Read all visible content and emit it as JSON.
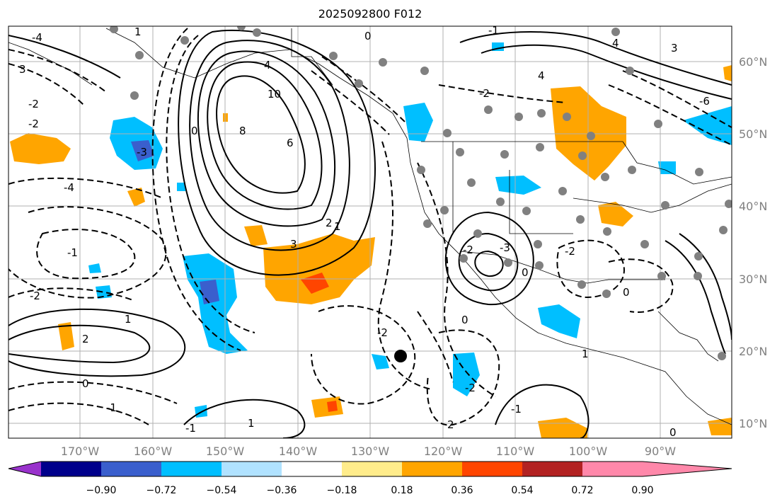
{
  "title": "2025092800 F012",
  "map": {
    "lon_labels": [
      "170°W",
      "160°W",
      "150°W",
      "140°W",
      "130°W",
      "120°W",
      "110°W",
      "100°W",
      "90°W"
    ],
    "lat_labels": [
      "60°N",
      "50°N",
      "40°N",
      "30°N",
      "20°N",
      "10°N"
    ],
    "contour_labels": [
      "-4",
      "3",
      "-2",
      "-2",
      "-3",
      "-4",
      "-1",
      "-2",
      "2",
      "1",
      "0",
      "-1",
      "1",
      "10",
      "8",
      "6",
      "4",
      "3",
      "2",
      "1",
      "0",
      "-2",
      "0",
      "-3",
      "0",
      "-2",
      "0",
      "-2",
      "1",
      "-1",
      "2",
      "4",
      "3",
      "4",
      "-1",
      "-2",
      "1",
      "-2",
      "0",
      "-1",
      "0",
      "-6"
    ],
    "marker": "filled-circle-black"
  },
  "colorbar": {
    "colors": [
      "#9932CC",
      "#00008B",
      "#3A5FCD",
      "#00BFFF",
      "#B0E2FF",
      "#FFFFFF",
      "#FFEC8B",
      "#FFA500",
      "#FF4500",
      "#B22222",
      "#FF88AA"
    ],
    "tick_labels": [
      "−0.90",
      "−0.72",
      "−0.54",
      "−0.36",
      "−0.18",
      "0.18",
      "0.36",
      "0.54",
      "0.72",
      "0.90"
    ]
  }
}
